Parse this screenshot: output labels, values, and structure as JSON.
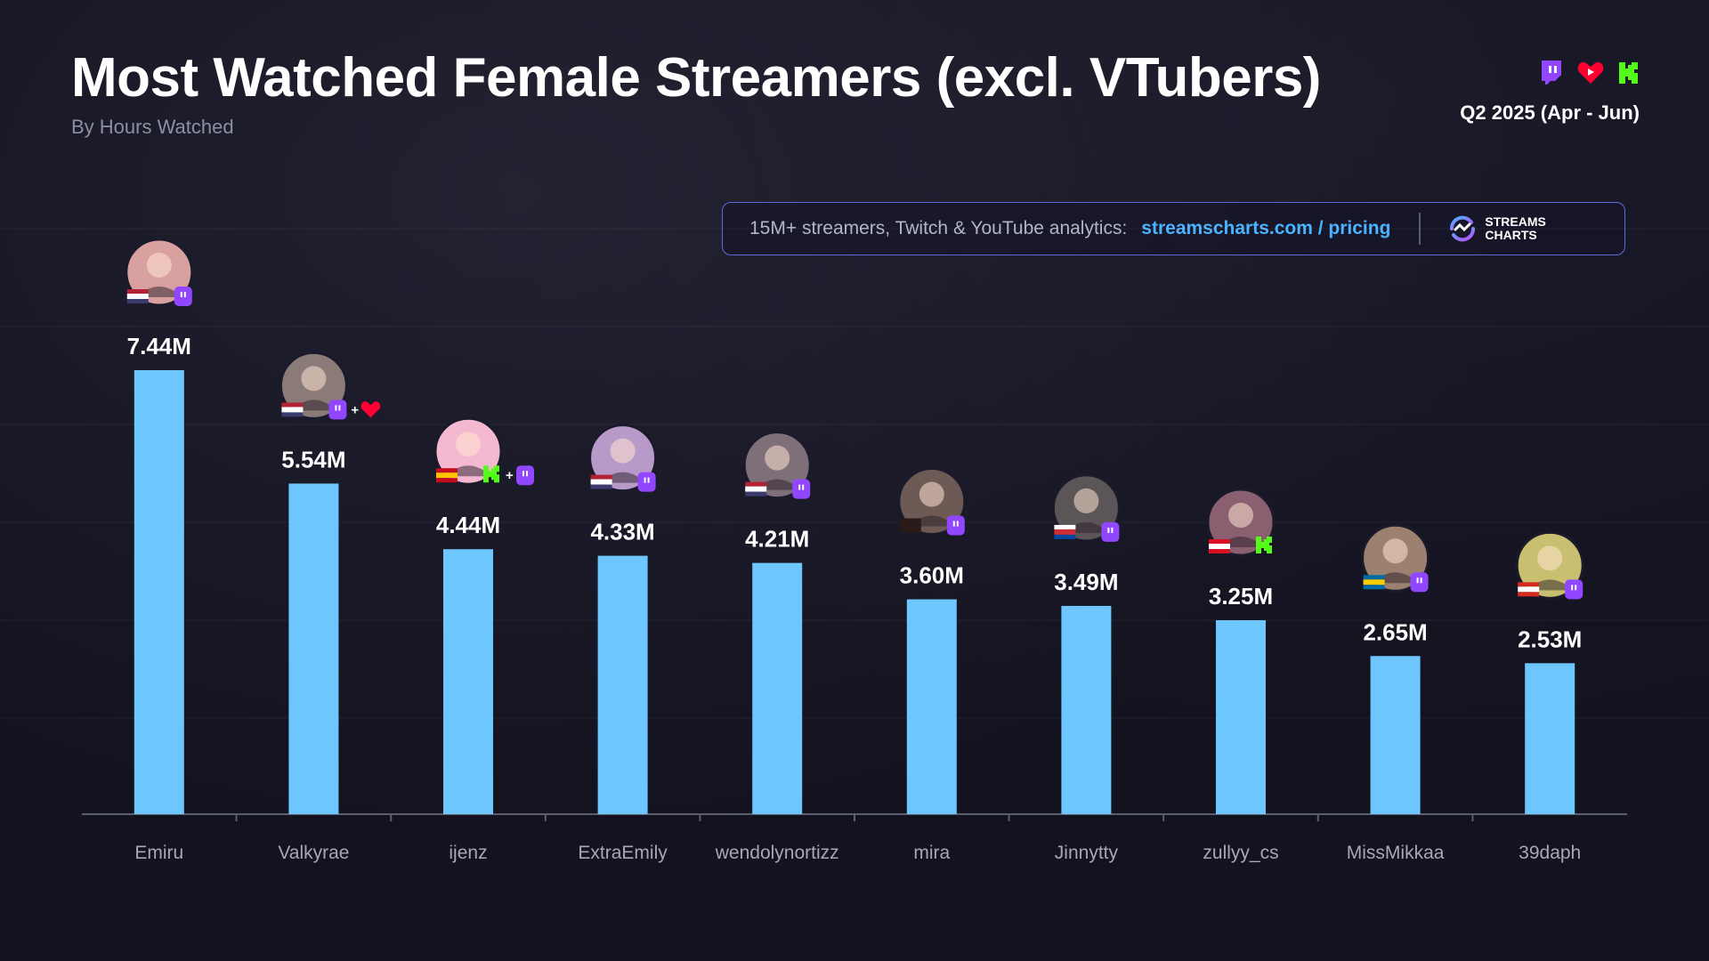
{
  "header": {
    "title": "Most Watched Female Streamers (excl. VTubers)",
    "subtitle": "By Hours Watched",
    "period": "Q2 2025 (Apr - Jun)",
    "platform_icons": [
      "twitch-icon",
      "youtube-heart-icon",
      "kick-icon"
    ]
  },
  "promo": {
    "text": "15M+ streamers, Twitch & YouTube analytics:",
    "link": "streamscharts.com / pricing",
    "logo_line1": "STREAMS",
    "logo_line2": "CHARTS"
  },
  "colors": {
    "background": "#13121f",
    "bar": "#6ec6ff",
    "twitch": "#9146ff",
    "youtube": "#ff0033",
    "kick": "#53fc18",
    "link": "#4ab3ff"
  },
  "chart_data": {
    "type": "bar",
    "categories": [
      "Emiru",
      "Valkyrae",
      "ijenz",
      "ExtraEmily",
      "wendolynortizz",
      "mira",
      "Jinnytty",
      "zullyy_cs",
      "MissMikkaa",
      "39daph"
    ],
    "values": [
      7.44,
      5.54,
      4.44,
      4.33,
      4.21,
      3.6,
      3.49,
      3.25,
      2.65,
      2.53
    ],
    "value_labels": [
      "7.44M",
      "5.54M",
      "4.44M",
      "4.33M",
      "4.21M",
      "3.60M",
      "3.49M",
      "3.25M",
      "2.65M",
      "2.53M"
    ],
    "platforms": [
      [
        "twitch"
      ],
      [
        "twitch",
        "youtube"
      ],
      [
        "kick",
        "twitch"
      ],
      [
        "twitch"
      ],
      [
        "twitch"
      ],
      [
        "twitch"
      ],
      [
        "twitch"
      ],
      [
        "kick"
      ],
      [
        "twitch"
      ],
      [
        "twitch"
      ]
    ],
    "countries": [
      "US",
      "US",
      "ES",
      "US",
      "US",
      "",
      "KR",
      "PE",
      "SE",
      "CA"
    ],
    "ylim": [
      0,
      8
    ],
    "grid": true,
    "legend": "none"
  }
}
